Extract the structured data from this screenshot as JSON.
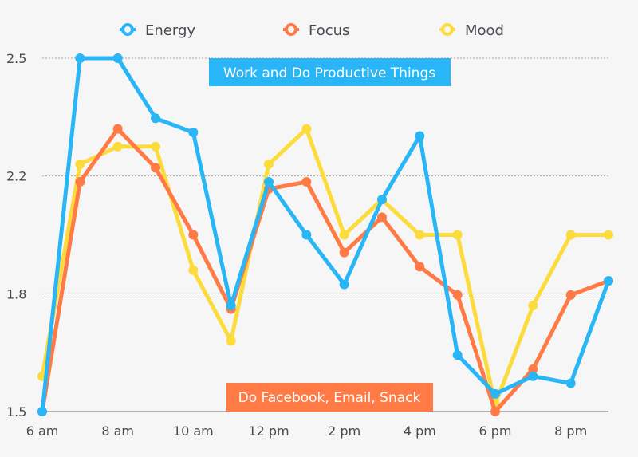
{
  "chart_data": {
    "type": "line",
    "title": "",
    "xlabel": "",
    "ylabel": "",
    "x": [
      "6 am",
      "7 am",
      "8 am",
      "9 am",
      "10 am",
      "11 am",
      "12 pm",
      "1 pm",
      "2 pm",
      "3 pm",
      "4 pm",
      "5 pm",
      "6 pm",
      "7 pm",
      "8 pm",
      "9 pm"
    ],
    "x_tick_labels": [
      "6 am",
      "8 am",
      "10 am",
      "12 pm",
      "2 pm",
      "4 pm",
      "6 pm",
      "8 pm"
    ],
    "y_tick_labels": [
      "1.5",
      "1.8",
      "2.2",
      "2.5"
    ],
    "y_ticks": [
      1.5,
      1.8333,
      2.1667,
      2.5
    ],
    "ylim": [
      1.5,
      2.5
    ],
    "grid": true,
    "legend_position": "top-center",
    "series": [
      {
        "name": "Energy",
        "color": "#29b6f6",
        "values": [
          1.5,
          2.5,
          2.5,
          2.33,
          2.29,
          1.8,
          2.15,
          2.0,
          1.86,
          2.1,
          2.28,
          1.66,
          1.55,
          1.6,
          1.58,
          1.87
        ]
      },
      {
        "name": "Focus",
        "color": "#ff7a45",
        "values": [
          1.5,
          2.15,
          2.3,
          2.19,
          2.0,
          1.79,
          2.13,
          2.15,
          1.95,
          2.05,
          1.91,
          1.83,
          1.5,
          1.62,
          1.83,
          1.87
        ]
      },
      {
        "name": "Mood",
        "color": "#fbdc3c",
        "values": [
          1.6,
          2.2,
          2.25,
          2.25,
          1.9,
          1.7,
          2.2,
          2.3,
          2.0,
          2.1,
          2.0,
          2.0,
          1.52,
          1.8,
          2.0,
          2.0
        ]
      }
    ],
    "annotations": [
      {
        "text": "Work and Do Productive Things",
        "color": "#29b6f6",
        "x_start": "10 am",
        "y": 2.5
      },
      {
        "text": "Do Facebook, Email, Snack",
        "color": "#ff7a45",
        "x_start": "11 am",
        "y": 1.5
      }
    ]
  }
}
